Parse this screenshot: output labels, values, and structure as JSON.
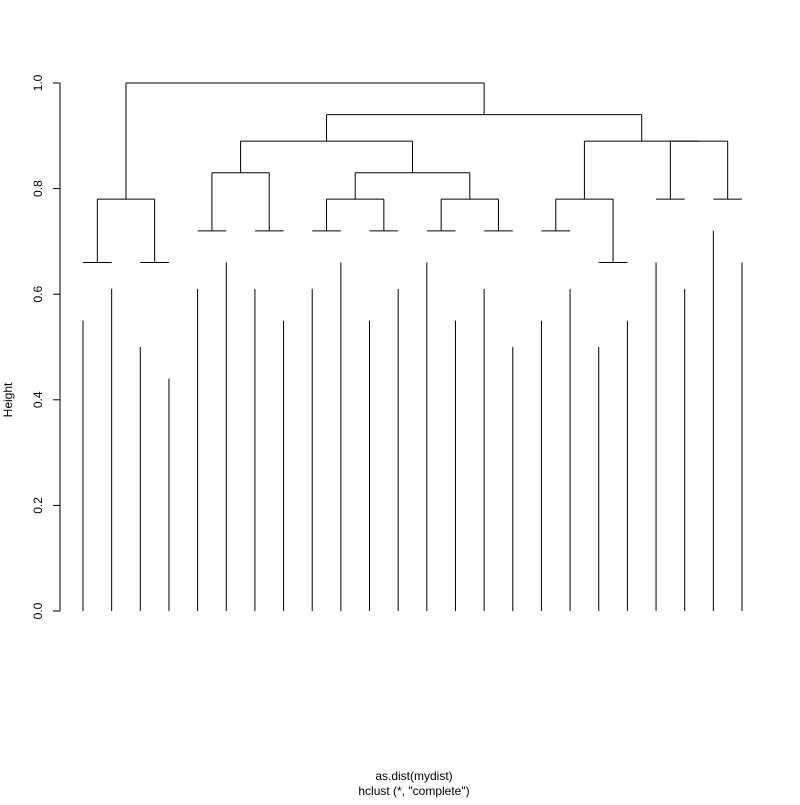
{
  "chart_data": {
    "type": "dendrogram",
    "ylabel": "Height",
    "xlabel": "as.dist(mydist)",
    "subtitle": "hclust (*, \"complete\")",
    "ylim": [
      0,
      1
    ],
    "yticks": [
      {
        "value": 0,
        "label": "0.0"
      },
      0.2,
      0.4,
      0.6,
      0.8,
      {
        "value": 1,
        "label": "1.0"
      }
    ],
    "color": "#000000",
    "tree": {
      "height": 1.0,
      "children": [
        {
          "height": 0.78,
          "children": [
            {
              "height": 0.66,
              "children": [
                {
                  "height": 0.55
                },
                {
                  "height": 0.61
                }
              ]
            },
            {
              "height": 0.66,
              "children": [
                {
                  "height": 0.5
                },
                {
                  "height": 0.44
                }
              ]
            }
          ]
        },
        {
          "height": 0.94,
          "children": [
            {
              "height": 0.89,
              "children": [
                {
                  "height": 0.83,
                  "children": [
                    {
                      "height": 0.72,
                      "children": [
                        {
                          "height": 0.61
                        },
                        {
                          "height": 0.66
                        }
                      ]
                    },
                    {
                      "height": 0.72,
                      "children": [
                        {
                          "height": 0.61
                        },
                        {
                          "height": 0.55
                        }
                      ]
                    }
                  ]
                },
                {
                  "height": 0.83,
                  "children": [
                    {
                      "height": 0.78,
                      "children": [
                        {
                          "height": 0.72,
                          "children": [
                            {
                              "height": 0.61
                            },
                            {
                              "height": 0.66
                            }
                          ]
                        },
                        {
                          "height": 0.72,
                          "children": [
                            {
                              "height": 0.55
                            },
                            {
                              "height": 0.61
                            }
                          ]
                        }
                      ]
                    },
                    {
                      "height": 0.78,
                      "children": [
                        {
                          "height": 0.72,
                          "children": [
                            {
                              "height": 0.66
                            },
                            {
                              "height": 0.55
                            }
                          ]
                        },
                        {
                          "height": 0.72,
                          "children": [
                            {
                              "height": 0.61
                            },
                            {
                              "height": 0.5
                            }
                          ]
                        }
                      ]
                    }
                  ]
                }
              ]
            },
            {
              "height": 0.89,
              "children": [
                {
                  "height": 0.78,
                  "children": [
                    {
                      "height": 0.72,
                      "children": [
                        {
                          "height": 0.55
                        },
                        {
                          "height": 0.61
                        }
                      ]
                    },
                    {
                      "height": 0.66,
                      "children": [
                        {
                          "height": 0.5
                        },
                        {
                          "height": 0.55
                        }
                      ]
                    }
                  ]
                },
                {
                  "height": 0.89,
                  "children": [
                    {
                      "height": 0.78,
                      "children": [
                        {
                          "height": 0.66
                        },
                        {
                          "height": 0.61
                        }
                      ]
                    },
                    {
                      "height": 0.78,
                      "children": [
                        {
                          "height": 0.72
                        },
                        {
                          "height": 0.66
                        }
                      ]
                    }
                  ]
                }
              ]
            }
          ]
        }
      ]
    }
  }
}
